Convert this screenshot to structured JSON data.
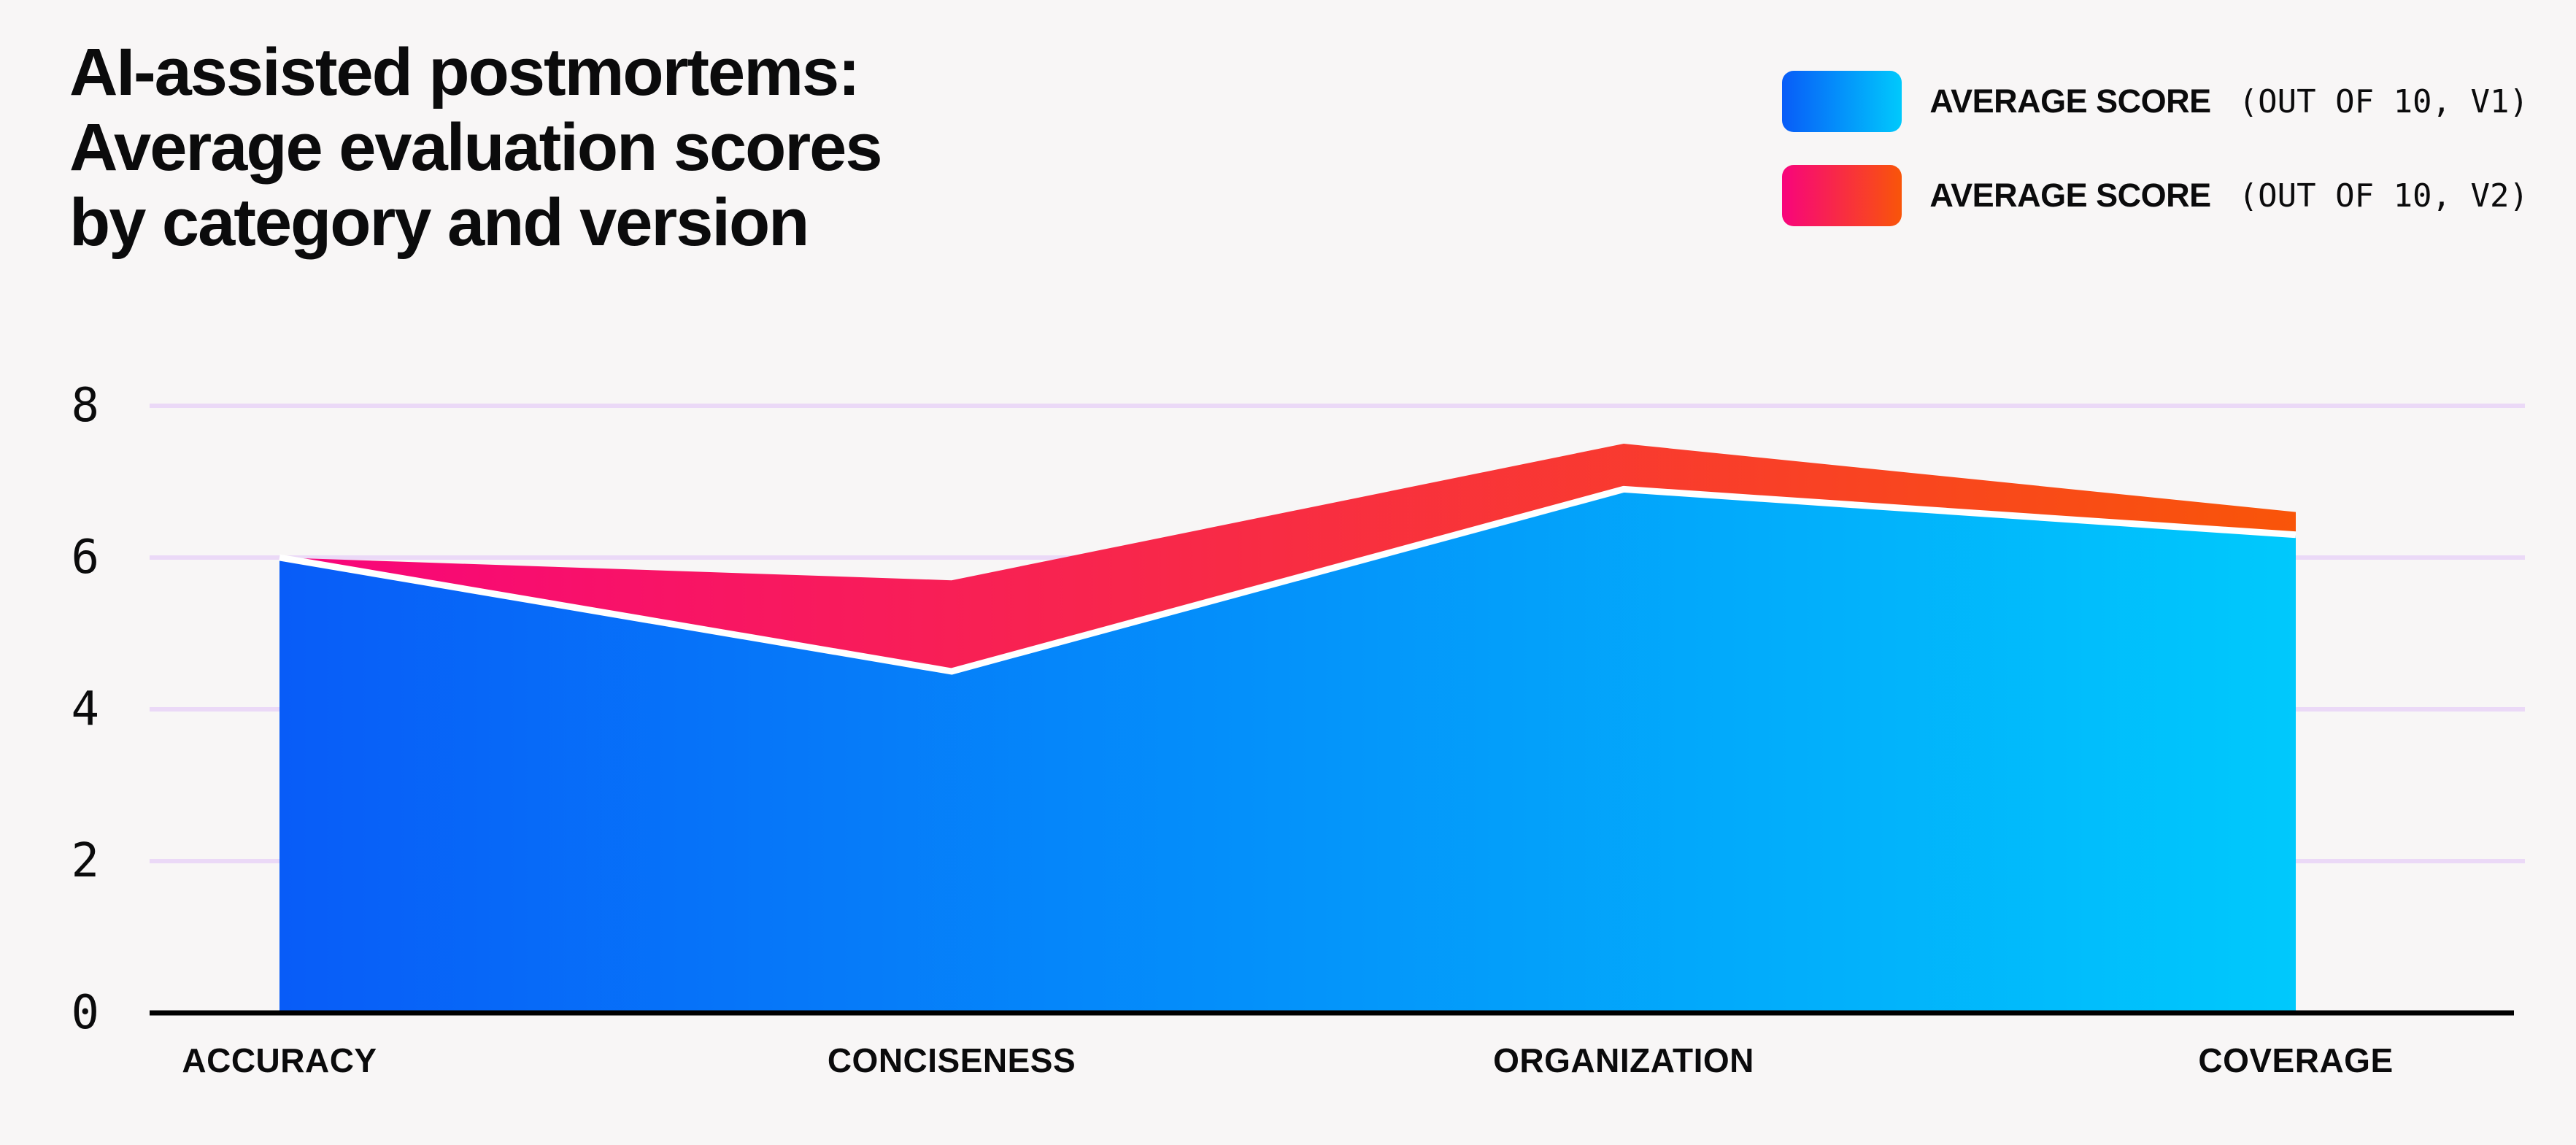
{
  "background": "#F8F6F6",
  "text_color": "#0B0B0C",
  "title": {
    "lines": [
      "AI-assisted postmortems:",
      "Average evaluation scores",
      "by category and version"
    ]
  },
  "legend": {
    "position": "top-right",
    "items": [
      {
        "label": "AVERAGE SCORE",
        "qualifier": "(OUT OF 10, V1)",
        "gradient": [
          "#085CF8",
          "#00C9FC"
        ]
      },
      {
        "label": "AVERAGE SCORE",
        "qualifier": "(OUT OF 10, V2)",
        "gradient": [
          "#F8047C",
          "#F95509"
        ]
      }
    ]
  },
  "chart_data": {
    "type": "area",
    "categories": [
      "ACCURACY",
      "CONCISENESS",
      "ORGANIZATION",
      "COVERAGE"
    ],
    "series": [
      {
        "name": "Average score (out of 10, V1)",
        "values": [
          6.0,
          4.5,
          6.9,
          6.3
        ],
        "gradient": [
          "#085CF8",
          "#00C9FC"
        ],
        "top_stroke": "#FFFFFF"
      },
      {
        "name": "Average score (out of 10, V2)",
        "values": [
          6.0,
          5.7,
          7.5,
          6.6
        ],
        "gradient": [
          "#F8047C",
          "#F95509"
        ],
        "top_stroke": null
      }
    ],
    "draw_order": [
      "v2-behind",
      "v1-front"
    ],
    "yticks": [
      8,
      6,
      4,
      2,
      0
    ],
    "ylim": [
      0,
      8
    ],
    "grid": true,
    "gridline_color": "#EBD9F7",
    "axis_color": "#000000",
    "legend_position": "top-right"
  }
}
